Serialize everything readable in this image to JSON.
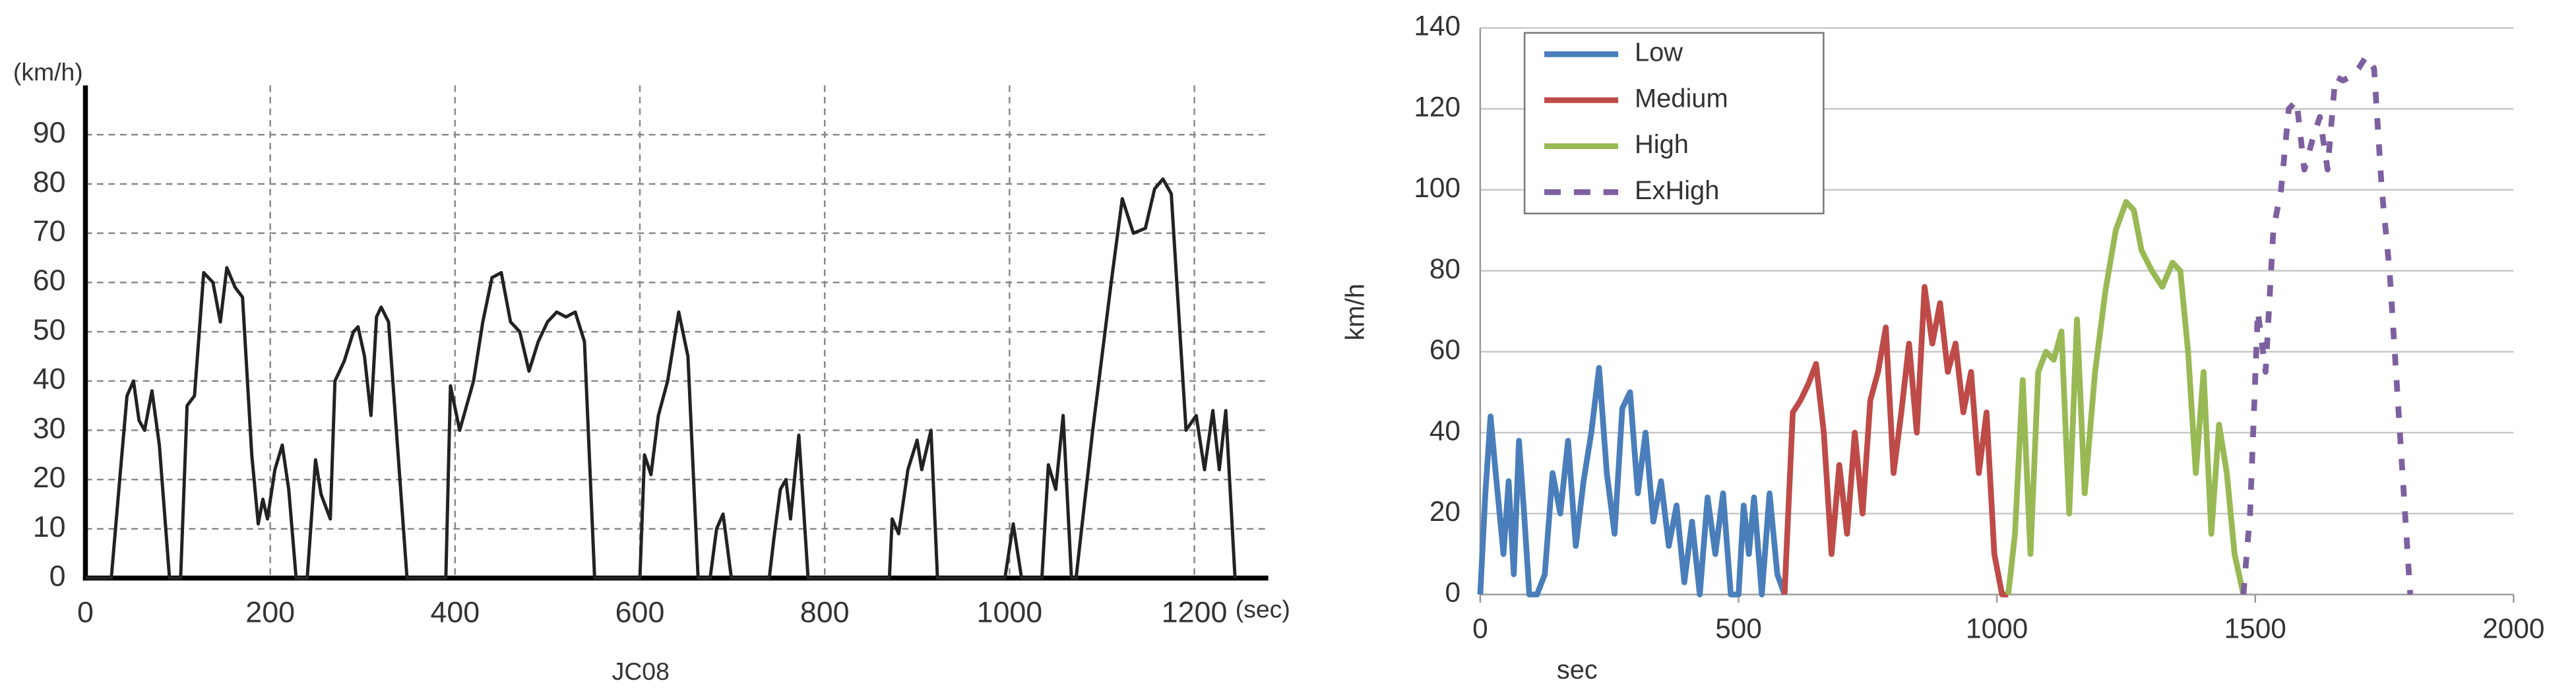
{
  "chart_data": [
    {
      "type": "line",
      "title": "JC08",
      "ylabel": "(km/h)",
      "xlabel": "(sec)",
      "xlim": [
        0,
        1280
      ],
      "ylim": [
        0,
        100
      ],
      "xticks": [
        0,
        200,
        400,
        600,
        800,
        1000,
        1200
      ],
      "yticks": [
        0,
        10,
        20,
        30,
        40,
        50,
        60,
        70,
        80,
        90
      ],
      "grid": "dashed",
      "series": [
        {
          "color": "#222222",
          "x": [
            0,
            28,
            38,
            45,
            52,
            58,
            64,
            72,
            80,
            91,
            103,
            110,
            118,
            128,
            138,
            146,
            153,
            162,
            170,
            180,
            187,
            192,
            197,
            205,
            213,
            220,
            228,
            240,
            249,
            255,
            265,
            270,
            280,
            290,
            295,
            302,
            309,
            315,
            320,
            328,
            348,
            390,
            395,
            405,
            420,
            430,
            440,
            450,
            460,
            470,
            480,
            490,
            500,
            510,
            520,
            530,
            540,
            551,
            600,
            605,
            612,
            620,
            630,
            642,
            652,
            663,
            676,
            683,
            690,
            699,
            740,
            745,
            752,
            758,
            763,
            772,
            782,
            870,
            873,
            880,
            890,
            900,
            905,
            915,
            922,
            995,
            1004,
            1013,
            1035,
            1042,
            1050,
            1058,
            1067,
            1072,
            1090,
            1110,
            1122,
            1134,
            1147,
            1157,
            1166,
            1175,
            1191,
            1202,
            1211,
            1220,
            1227,
            1234,
            1244
          ],
          "values": [
            0,
            0,
            22,
            37,
            40,
            32,
            30,
            38,
            27,
            0,
            0,
            35,
            37,
            62,
            60,
            52,
            63,
            59,
            57,
            25,
            11,
            16,
            12,
            22,
            27,
            18,
            0,
            0,
            24,
            17,
            12,
            40,
            44,
            50,
            51,
            45,
            33,
            53,
            55,
            52,
            0,
            0,
            39,
            30,
            40,
            52,
            61,
            62,
            52,
            50,
            42,
            48,
            52,
            54,
            53,
            54,
            48,
            0,
            0,
            25,
            21,
            33,
            40,
            54,
            45,
            0,
            0,
            10,
            13,
            0,
            0,
            8,
            18,
            20,
            12,
            29,
            0,
            0,
            12,
            9,
            22,
            28,
            22,
            30,
            0,
            0,
            11,
            0,
            0,
            23,
            18,
            33,
            0,
            0,
            30,
            60,
            77,
            70,
            71,
            79,
            81,
            78,
            30,
            33,
            22,
            34,
            22,
            34,
            0
          ]
        }
      ]
    },
    {
      "type": "line",
      "ylabel": "km/h",
      "xlabel": "sec",
      "xlim": [
        0,
        2000
      ],
      "ylim": [
        0,
        140
      ],
      "xticks": [
        0,
        500,
        1000,
        1500,
        2000
      ],
      "yticks": [
        0,
        20,
        40,
        60,
        80,
        100,
        120,
        140
      ],
      "grid": "solid",
      "legend": "upper left",
      "series": [
        {
          "name": "Low",
          "color": "#4a7ebb",
          "x": [
            0,
            10,
            20,
            30,
            45,
            55,
            65,
            75,
            85,
            95,
            110,
            125,
            140,
            155,
            170,
            185,
            200,
            215,
            230,
            245,
            260,
            275,
            290,
            305,
            320,
            335,
            350,
            365,
            380,
            395,
            410,
            425,
            440,
            455,
            470,
            485,
            500,
            510,
            520,
            530,
            545,
            560,
            575,
            589
          ],
          "values": [
            0,
            25,
            44,
            30,
            10,
            28,
            5,
            38,
            20,
            0,
            0,
            5,
            30,
            20,
            38,
            12,
            28,
            40,
            56,
            30,
            15,
            46,
            50,
            25,
            40,
            18,
            28,
            12,
            22,
            3,
            18,
            0,
            24,
            10,
            25,
            0,
            0,
            22,
            10,
            24,
            0,
            25,
            5,
            0
          ]
        },
        {
          "name": "Medium",
          "color": "#be4b48",
          "x": [
            589,
            605,
            620,
            635,
            650,
            665,
            680,
            695,
            710,
            725,
            740,
            755,
            770,
            785,
            800,
            815,
            830,
            845,
            860,
            875,
            890,
            905,
            920,
            935,
            950,
            965,
            980,
            995,
            1010,
            1022
          ],
          "values": [
            0,
            45,
            48,
            52,
            57,
            40,
            10,
            32,
            15,
            40,
            20,
            48,
            55,
            66,
            30,
            45,
            62,
            40,
            76,
            62,
            72,
            55,
            62,
            45,
            55,
            30,
            45,
            10,
            0,
            0
          ]
        },
        {
          "name": "High",
          "color": "#98b954",
          "x": [
            1022,
            1035,
            1050,
            1065,
            1080,
            1095,
            1110,
            1125,
            1140,
            1155,
            1170,
            1190,
            1210,
            1230,
            1250,
            1265,
            1280,
            1300,
            1320,
            1340,
            1355,
            1370,
            1385,
            1400,
            1415,
            1430,
            1445,
            1460,
            1477
          ],
          "values": [
            0,
            15,
            53,
            10,
            55,
            60,
            58,
            65,
            20,
            68,
            25,
            55,
            75,
            90,
            97,
            95,
            85,
            80,
            76,
            82,
            80,
            60,
            30,
            55,
            15,
            42,
            30,
            10,
            0
          ]
        },
        {
          "name": "ExHigh",
          "color": "#7d60a0",
          "dashed": true,
          "x": [
            1477,
            1490,
            1505,
            1520,
            1535,
            1550,
            1565,
            1580,
            1595,
            1610,
            1625,
            1640,
            1655,
            1670,
            1685,
            1700,
            1715,
            1730,
            1745,
            1760,
            1775,
            1790,
            1800
          ],
          "values": [
            0,
            20,
            70,
            55,
            90,
            100,
            120,
            122,
            105,
            112,
            118,
            105,
            128,
            127,
            128,
            130,
            133,
            130,
            100,
            80,
            50,
            20,
            0
          ]
        }
      ]
    }
  ]
}
